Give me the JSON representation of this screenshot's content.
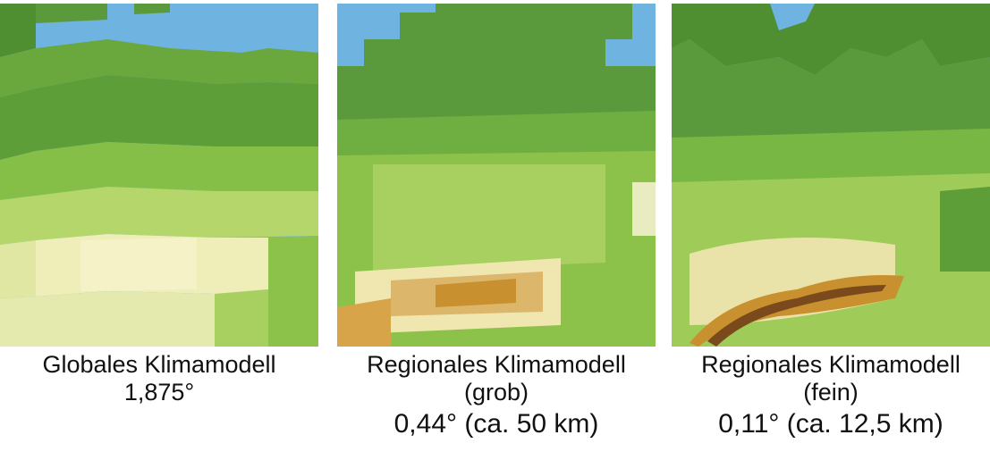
{
  "panels": [
    {
      "caption_line1": "Globales Klimamodell",
      "caption_line2": "1,875°",
      "caption_line3": ""
    },
    {
      "caption_line1": "Regionales Klimamodell",
      "caption_line2": "(grob)",
      "caption_line3": "0,44° (ca. 50 km)"
    },
    {
      "caption_line1": "Regionales Klimamodell",
      "caption_line2": "(fein)",
      "caption_line3": "0,11° (ca. 12,5 km)"
    }
  ],
  "colors": {
    "water": "#6fb3e0",
    "lowland": "#5a9a3c",
    "mid": "#8cc24a",
    "highland": "#f3eec5",
    "mountain": "#c9902f",
    "peak": "#7a4a1c"
  }
}
